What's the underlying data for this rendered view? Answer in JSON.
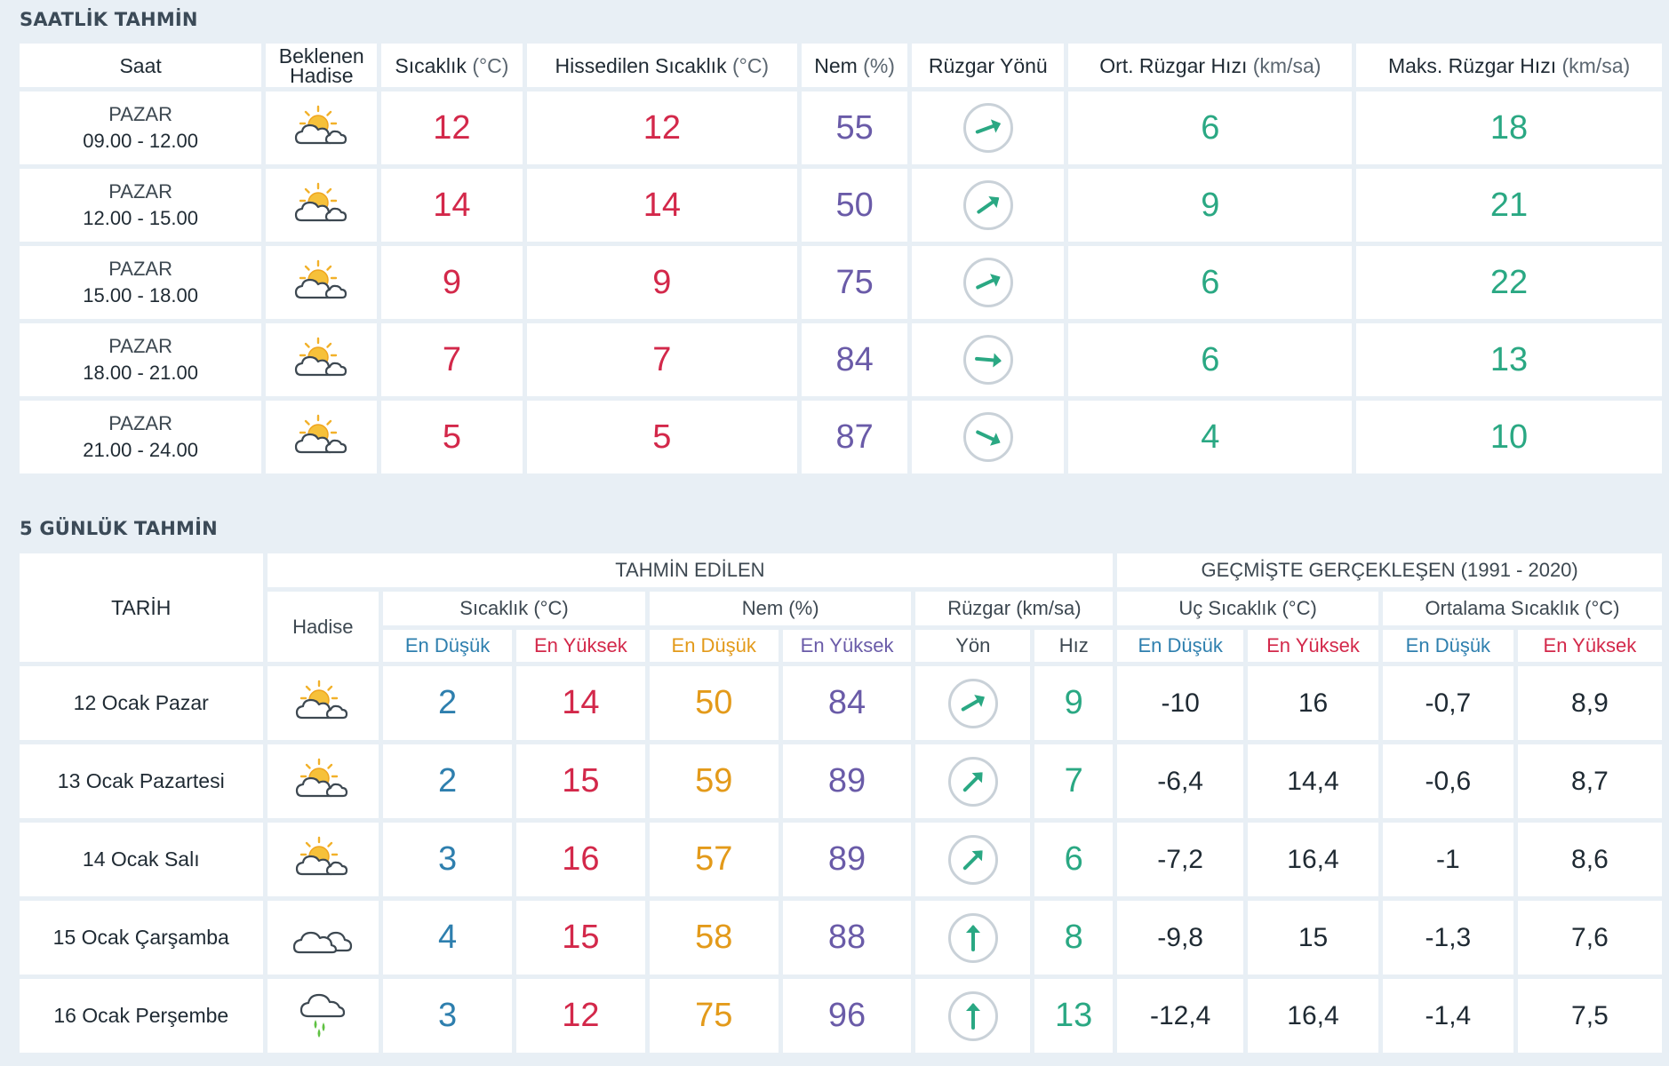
{
  "hourly": {
    "title": "SAATLİK TAHMİN",
    "headers": {
      "saat": "Saat",
      "hadise": [
        "Beklenen",
        "Hadise"
      ],
      "sicaklik": "Sıcaklık",
      "sicaklik_unit": "(°C)",
      "hissedilen": "Hissedilen Sıcaklık",
      "hissedilen_unit": "(°C)",
      "nem": "Nem",
      "nem_unit": "(%)",
      "ruzgar_yonu": "Rüzgar Yönü",
      "ort_ruzgar": "Ort. Rüzgar Hızı",
      "ort_ruzgar_unit": "(km/sa)",
      "maks_ruzgar": "Maks. Rüzgar Hızı",
      "maks_ruzgar_unit": "(km/sa)"
    },
    "rows": [
      {
        "day": "PAZAR",
        "time": "09.00 - 12.00",
        "icon": "sun-behind-cloud-icon",
        "temp": "12",
        "feels": "12",
        "humidity": "55",
        "wind_dir_deg": 70,
        "avg_wind": "6",
        "max_wind": "18"
      },
      {
        "day": "PAZAR",
        "time": "12.00 - 15.00",
        "icon": "sun-behind-cloud-icon",
        "temp": "14",
        "feels": "14",
        "humidity": "50",
        "wind_dir_deg": 55,
        "avg_wind": "9",
        "max_wind": "21"
      },
      {
        "day": "PAZAR",
        "time": "15.00 - 18.00",
        "icon": "sun-behind-cloud-icon",
        "temp": "9",
        "feels": "9",
        "humidity": "75",
        "wind_dir_deg": 65,
        "avg_wind": "6",
        "max_wind": "22"
      },
      {
        "day": "PAZAR",
        "time": "18.00 - 21.00",
        "icon": "sun-behind-cloud-icon",
        "temp": "7",
        "feels": "7",
        "humidity": "84",
        "wind_dir_deg": 95,
        "avg_wind": "6",
        "max_wind": "13"
      },
      {
        "day": "PAZAR",
        "time": "21.00 - 24.00",
        "icon": "sun-behind-cloud-icon",
        "temp": "5",
        "feels": "5",
        "humidity": "87",
        "wind_dir_deg": 115,
        "avg_wind": "4",
        "max_wind": "10"
      }
    ]
  },
  "daily": {
    "title": "5 GÜNLÜK TAHMİN",
    "headers": {
      "tarih": "TARİH",
      "tahmin_edilen": "TAHMİN EDİLEN",
      "gecmiste": "GEÇMİŞTE GERÇEKLEŞEN (1991 - 2020)",
      "hadise": "Hadise",
      "sicaklik": "Sıcaklık (°C)",
      "nem": "Nem (%)",
      "ruzgar": "Rüzgar (km/sa)",
      "uc_sicaklik": "Uç Sıcaklık (°C)",
      "ortalama_sicaklik": "Ortalama Sıcaklık (°C)",
      "en_dusuk": "En Düşük",
      "en_yuksek": "En Yüksek",
      "yon": "Yön",
      "hiz": "Hız"
    },
    "rows": [
      {
        "date": "12 Ocak Pazar",
        "icon": "sun-behind-cloud-icon",
        "tmin": "2",
        "tmax": "14",
        "hmin": "50",
        "hmax": "84",
        "wind_dir_deg": 60,
        "wind_speed": "9",
        "ext_min": "-10",
        "ext_max": "16",
        "avg_min": "-0,7",
        "avg_max": "8,9"
      },
      {
        "date": "13 Ocak Pazartesi",
        "icon": "sun-behind-cloud-icon",
        "tmin": "2",
        "tmax": "15",
        "hmin": "59",
        "hmax": "89",
        "wind_dir_deg": 45,
        "wind_speed": "7",
        "ext_min": "-6,4",
        "ext_max": "14,4",
        "avg_min": "-0,6",
        "avg_max": "8,7"
      },
      {
        "date": "14 Ocak Salı",
        "icon": "sun-behind-cloud-icon",
        "tmin": "3",
        "tmax": "16",
        "hmin": "57",
        "hmax": "89",
        "wind_dir_deg": 45,
        "wind_speed": "6",
        "ext_min": "-7,2",
        "ext_max": "16,4",
        "avg_min": "-1",
        "avg_max": "8,6"
      },
      {
        "date": "15 Ocak Çarşamba",
        "icon": "cloud-icon",
        "tmin": "4",
        "tmax": "15",
        "hmin": "58",
        "hmax": "88",
        "wind_dir_deg": 0,
        "wind_speed": "8",
        "ext_min": "-9,8",
        "ext_max": "15",
        "avg_min": "-1,3",
        "avg_max": "7,6"
      },
      {
        "date": "16 Ocak Perşembe",
        "icon": "rain-cloud-icon",
        "tmin": "3",
        "tmax": "12",
        "hmin": "75",
        "hmax": "96",
        "wind_dir_deg": 0,
        "wind_speed": "13",
        "ext_min": "-12,4",
        "ext_max": "16,4",
        "avg_min": "-1,4",
        "avg_max": "7,5"
      }
    ]
  },
  "colors": {
    "temp": "#d3284a",
    "humidity": "#6a5ba8",
    "wind": "#2aa883",
    "min_temp": "#2e7fae",
    "min_humidity": "#e39a1a",
    "background": "#e8eff5"
  }
}
